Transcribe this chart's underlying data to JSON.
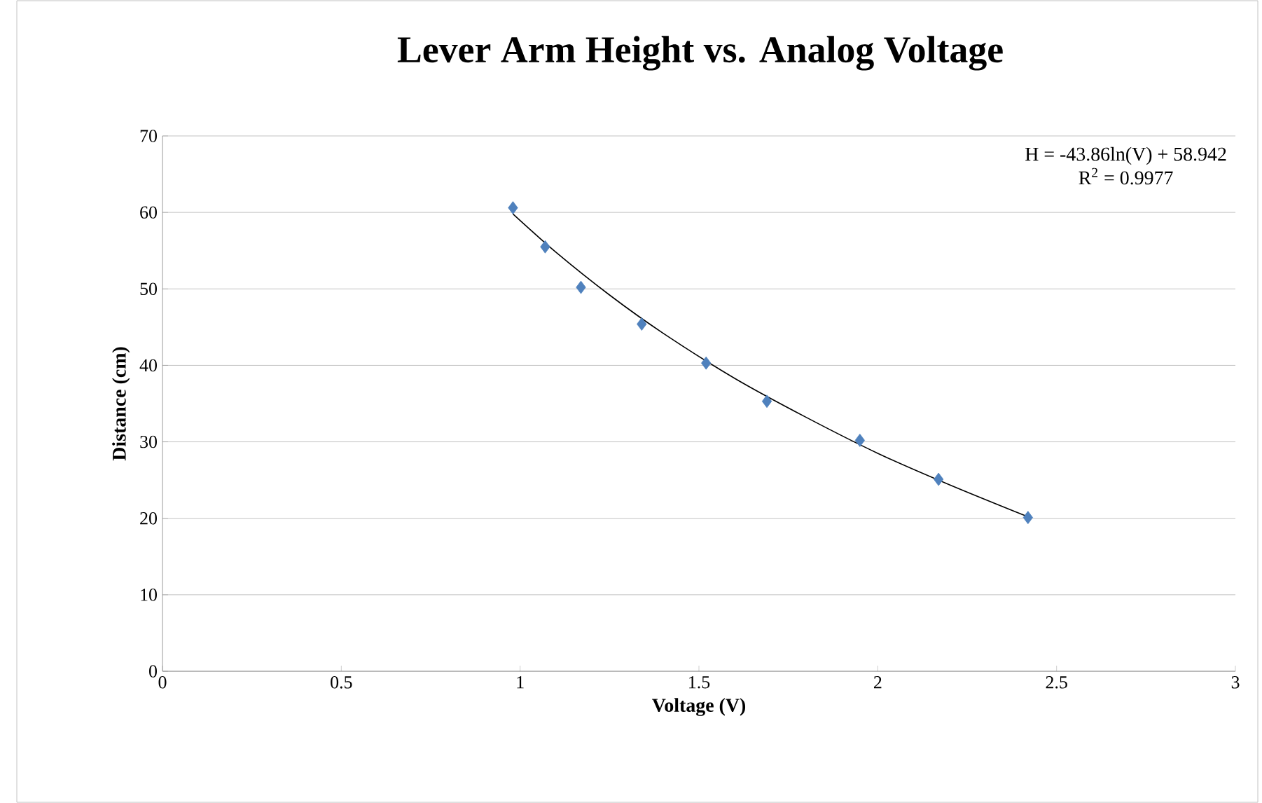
{
  "chart_data": {
    "type": "scatter",
    "title": "Lever Arm Height vs. Analog Voltage",
    "xlabel": "Voltage (V)",
    "ylabel": "Distance (cm)",
    "annotations": [
      "H = -43.86ln(V) + 58.942",
      "R$^{2}$ = 0.9977"
    ],
    "xlim": [
      0,
      3
    ],
    "xticks": [
      0,
      0.5,
      1,
      1.5,
      2,
      2.5,
      3
    ],
    "ylim": [
      0,
      70
    ],
    "yticks": [
      0,
      10,
      20,
      30,
      40,
      50,
      60,
      70
    ],
    "grid": "y",
    "series": [
      {
        "marker": "diamond",
        "color": "#4f81bd",
        "x": [
          0.98,
          1.07,
          1.17,
          1.34,
          1.52,
          1.69,
          1.95,
          2.17,
          2.42
        ],
        "values": [
          60.6,
          55.5,
          50.2,
          45.4,
          40.3,
          35.3,
          30.2,
          25.1,
          20.1
        ]
      },
      {
        "type": "line",
        "color": "#000000",
        "line_style": "solid",
        "x": [
          0.98,
          1.1,
          1.25,
          1.4,
          1.6,
          1.8,
          2.0,
          2.2,
          2.42
        ],
        "values": [
          59.8,
          54.8,
          49.2,
          44.2,
          38.3,
          33.2,
          28.5,
          24.4,
          20.2
        ]
      }
    ]
  }
}
